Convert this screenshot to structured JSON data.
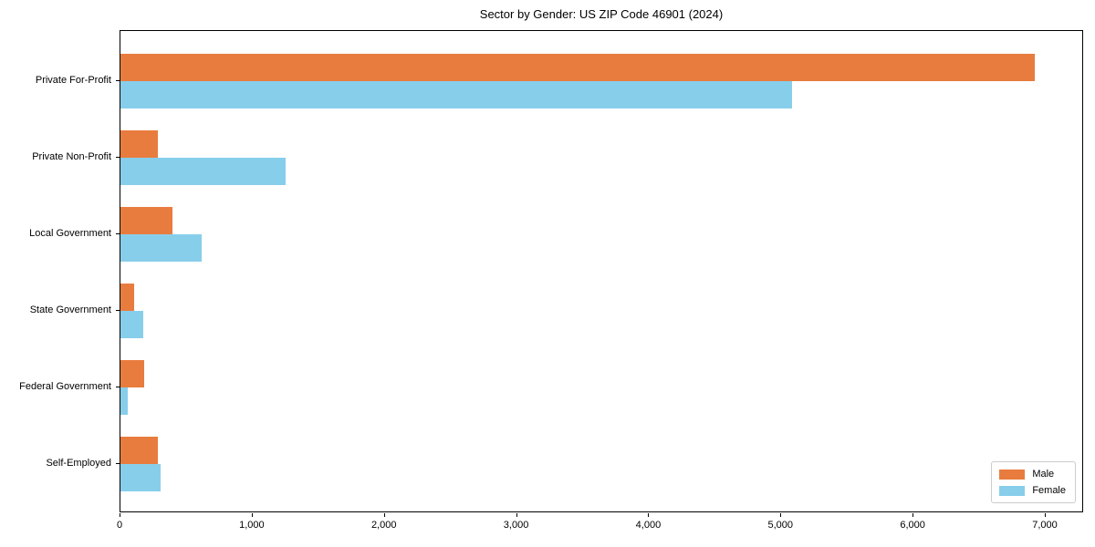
{
  "chart_data": {
    "type": "bar",
    "orientation": "horizontal",
    "title": "Sector by Gender: US ZIP Code 46901 (2024)",
    "xlabel": "",
    "ylabel": "",
    "categories": [
      "Private For-Profit",
      "Private Non-Profit",
      "Local Government",
      "State Government",
      "Federal Government",
      "Self-Employed"
    ],
    "series": [
      {
        "name": "Male",
        "color": "#e87c3e",
        "values": [
          6930,
          285,
          395,
          105,
          180,
          285
        ]
      },
      {
        "name": "Female",
        "color": "#87ceeb",
        "values": [
          5090,
          1255,
          615,
          175,
          55,
          305
        ]
      }
    ],
    "xlim": [
      0,
      7290
    ],
    "xticks": [
      0,
      1000,
      2000,
      3000,
      4000,
      5000,
      6000,
      7000
    ],
    "xtick_labels": [
      "0",
      "1,000",
      "2,000",
      "3,000",
      "4,000",
      "5,000",
      "6,000",
      "7,000"
    ],
    "grid": false,
    "legend": {
      "position": "lower right"
    }
  }
}
